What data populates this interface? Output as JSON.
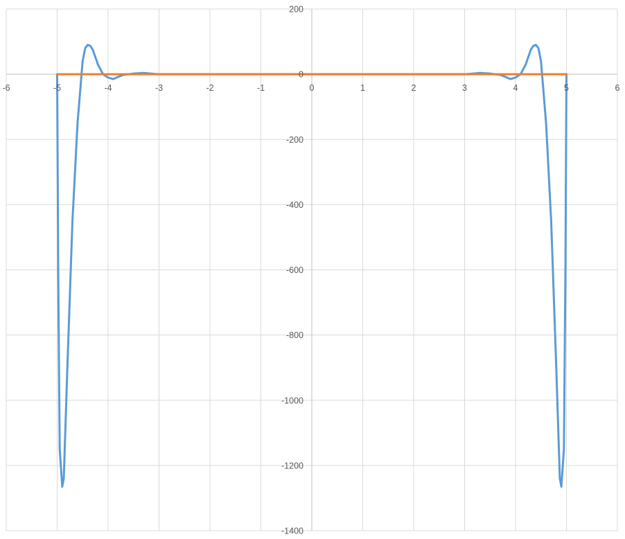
{
  "chart_data": {
    "type": "line",
    "title": "",
    "xlabel": "",
    "ylabel": "",
    "xlim": [
      -6,
      6
    ],
    "ylim": [
      -1400,
      200
    ],
    "x_ticks": [
      -6,
      -5,
      -4,
      -3,
      -2,
      -1,
      0,
      1,
      2,
      3,
      4,
      5,
      6
    ],
    "y_ticks": [
      200,
      0,
      -200,
      -400,
      -600,
      -800,
      -1000,
      -1200,
      -1400
    ],
    "grid": true,
    "legend": "none",
    "series": [
      {
        "color": "#5B9BD5",
        "x": [
          -5,
          -4.98,
          -4.95,
          -4.9,
          -4.87,
          -4.8,
          -4.7,
          -4.6,
          -4.5,
          -4.45,
          -4.4,
          -4.35,
          -4.3,
          -4.2,
          -4.1,
          -4.0,
          -3.9,
          -3.8,
          -3.7,
          -3.5,
          -3.3,
          -3.1,
          -3.0,
          -2.5,
          -2.0,
          -1.5,
          -1.0,
          -0.5,
          0,
          0.5,
          1.0,
          1.5,
          2.0,
          2.5,
          3.0,
          3.1,
          3.3,
          3.5,
          3.7,
          3.8,
          3.9,
          4.0,
          4.1,
          4.2,
          4.3,
          4.35,
          4.4,
          4.45,
          4.5,
          4.6,
          4.7,
          4.8,
          4.87,
          4.9,
          4.95,
          4.98,
          5
        ],
        "y": [
          0,
          -600,
          -1150,
          -1265,
          -1240,
          -900,
          -450,
          -150,
          40,
          80,
          90,
          87,
          75,
          30,
          0,
          -10,
          -15,
          -8,
          -2,
          2,
          4,
          1,
          0,
          0,
          0,
          0,
          0,
          0,
          0,
          0,
          0,
          0,
          0,
          0,
          0,
          1,
          4,
          2,
          -2,
          -8,
          -15,
          -10,
          0,
          30,
          75,
          87,
          90,
          80,
          40,
          -150,
          -450,
          -900,
          -1240,
          -1265,
          -1150,
          -600,
          0
        ]
      },
      {
        "color": "#ED7D31",
        "x": [
          -5,
          5
        ],
        "y": [
          0,
          0
        ]
      }
    ]
  }
}
